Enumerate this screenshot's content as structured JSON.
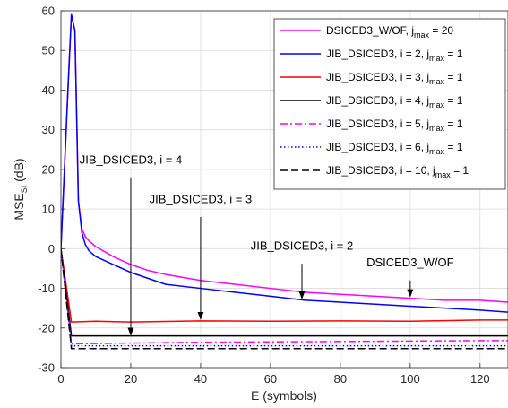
{
  "chart_data": {
    "type": "line",
    "xlabel": "E (symbols)",
    "ylabel_main": "MSE",
    "ylabel_sub": "SI",
    "ylabel_unit": " (dB)",
    "xlim": [
      0,
      128
    ],
    "ylim": [
      -30,
      60
    ],
    "xticks": [
      0,
      20,
      40,
      60,
      80,
      100,
      120
    ],
    "yticks": [
      -30,
      -20,
      -10,
      0,
      10,
      20,
      30,
      40,
      50,
      60
    ],
    "grid": true,
    "legend_position": "top-right",
    "series": [
      {
        "legend_main": "DSICED3_W/OF, j",
        "legend_sub": "max",
        "legend_tail": " = 20",
        "color": "#ff00ff",
        "dash": "solid",
        "points": [
          [
            0,
            0
          ],
          [
            2,
            40
          ],
          [
            3,
            59
          ],
          [
            4,
            55
          ],
          [
            5,
            12
          ],
          [
            6,
            5
          ],
          [
            7,
            3
          ],
          [
            8,
            2
          ],
          [
            10,
            0.5
          ],
          [
            15,
            -2
          ],
          [
            20,
            -4
          ],
          [
            25,
            -5.5
          ],
          [
            30,
            -6.5
          ],
          [
            40,
            -8
          ],
          [
            50,
            -9
          ],
          [
            60,
            -10
          ],
          [
            70,
            -11
          ],
          [
            80,
            -11.5
          ],
          [
            90,
            -12
          ],
          [
            100,
            -12.5
          ],
          [
            110,
            -13
          ],
          [
            120,
            -13
          ],
          [
            128,
            -13.5
          ]
        ]
      },
      {
        "legend_main": "JIB_DSICED3, i = 2, j",
        "legend_sub": "max",
        "legend_tail": " = 1",
        "color": "#0000ff",
        "dash": "solid",
        "points": [
          [
            0,
            0
          ],
          [
            2,
            40
          ],
          [
            3,
            59
          ],
          [
            4,
            55
          ],
          [
            5,
            12
          ],
          [
            6,
            4
          ],
          [
            7,
            1
          ],
          [
            8,
            -0.5
          ],
          [
            10,
            -2
          ],
          [
            15,
            -4
          ],
          [
            20,
            -6
          ],
          [
            25,
            -7.5
          ],
          [
            30,
            -9
          ],
          [
            40,
            -10
          ],
          [
            50,
            -11
          ],
          [
            60,
            -12
          ],
          [
            70,
            -13
          ],
          [
            80,
            -13.5
          ],
          [
            90,
            -14
          ],
          [
            100,
            -14.5
          ],
          [
            110,
            -15
          ],
          [
            120,
            -15.5
          ],
          [
            128,
            -16
          ]
        ]
      },
      {
        "legend_main": "JIB_DSICED3, i = 3, j",
        "legend_sub": "max",
        "legend_tail": " = 1",
        "color": "#ff0000",
        "dash": "solid",
        "points": [
          [
            0,
            0
          ],
          [
            3,
            -18.5
          ],
          [
            10,
            -18.3
          ],
          [
            20,
            -18.5
          ],
          [
            40,
            -18.2
          ],
          [
            60,
            -18.3
          ],
          [
            80,
            -18.2
          ],
          [
            100,
            -18.3
          ],
          [
            120,
            -18
          ],
          [
            128,
            -18
          ]
        ]
      },
      {
        "legend_main": "JIB_DSICED3, i = 4, j",
        "legend_sub": "max",
        "legend_tail": " = 1",
        "color": "#000000",
        "dash": "solid",
        "points": [
          [
            0,
            0
          ],
          [
            3,
            -22
          ],
          [
            20,
            -22
          ],
          [
            40,
            -22
          ],
          [
            60,
            -22
          ],
          [
            80,
            -22
          ],
          [
            100,
            -22
          ],
          [
            120,
            -22
          ],
          [
            128,
            -22
          ]
        ]
      },
      {
        "legend_main": "JIB_DSICED3, i = 5, j",
        "legend_sub": "max",
        "legend_tail": " = 1",
        "color": "#ff00ff",
        "dash": "dashdot",
        "points": [
          [
            0,
            0
          ],
          [
            3,
            -24
          ],
          [
            20,
            -23.8
          ],
          [
            40,
            -23.6
          ],
          [
            60,
            -23.5
          ],
          [
            80,
            -23.4
          ],
          [
            100,
            -23.3
          ],
          [
            120,
            -23.2
          ],
          [
            128,
            -23.2
          ]
        ]
      },
      {
        "legend_main": "JIB_DSICED3, i = 6, j",
        "legend_sub": "max",
        "legend_tail": " = 1",
        "color": "#0000ff",
        "dash": "dotted",
        "points": [
          [
            0,
            0
          ],
          [
            3,
            -24.5
          ],
          [
            20,
            -24.5
          ],
          [
            40,
            -24.5
          ],
          [
            60,
            -24.5
          ],
          [
            80,
            -24.5
          ],
          [
            100,
            -24.5
          ],
          [
            120,
            -24.5
          ],
          [
            128,
            -24.5
          ]
        ]
      },
      {
        "legend_main": "JIB_DSICED3, i = 10, j",
        "legend_sub": "max",
        "legend_tail": " = 1",
        "color": "#000000",
        "dash": "dashed",
        "points": [
          [
            0,
            0
          ],
          [
            3,
            -25.2
          ],
          [
            20,
            -25.2
          ],
          [
            40,
            -25.2
          ],
          [
            60,
            -25.2
          ],
          [
            80,
            -25.2
          ],
          [
            100,
            -25.2
          ],
          [
            120,
            -25.2
          ],
          [
            128,
            -25.2
          ]
        ]
      }
    ],
    "annotations": [
      {
        "text": "JIB_DSICED3, i = 4",
        "label_at": [
          20,
          21.5
        ],
        "arrow_from": [
          20,
          18
        ],
        "arrow_to": [
          20,
          -22.2
        ]
      },
      {
        "text": "JIB_DSICED3, i = 3",
        "label_at": [
          40,
          11.5
        ],
        "arrow_from": [
          40,
          8
        ],
        "arrow_to": [
          40,
          -18.2
        ]
      },
      {
        "text": "JIB_DSICED3, i = 2",
        "label_at": [
          69,
          -0.3
        ],
        "arrow_from": [
          69,
          -3.8
        ],
        "arrow_to": [
          69,
          -13
        ]
      },
      {
        "text": "DSICED3_W/OF",
        "label_at": [
          100,
          -4.4
        ],
        "arrow_from": [
          100,
          -8
        ],
        "arrow_to": [
          100,
          -12.5
        ]
      }
    ]
  }
}
